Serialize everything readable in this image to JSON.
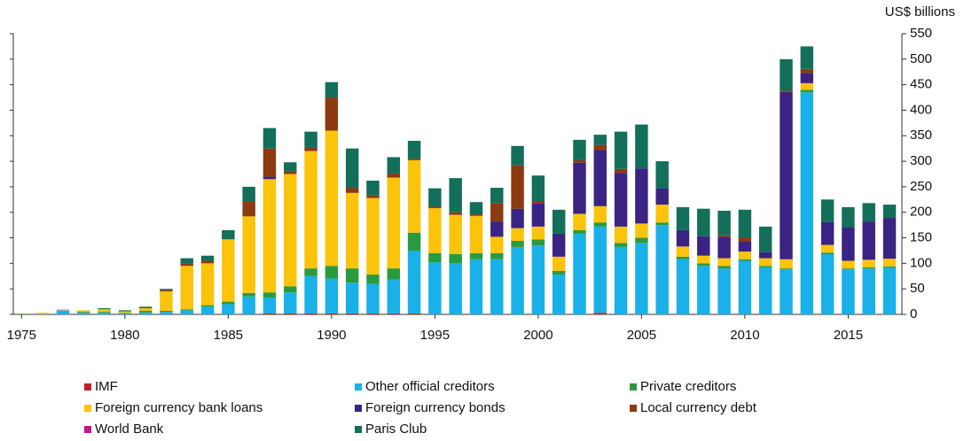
{
  "chart_data": {
    "type": "stacked_bar",
    "y_axis_label": "US$ billions",
    "x": [
      1975,
      1976,
      1977,
      1978,
      1979,
      1980,
      1981,
      1982,
      1983,
      1984,
      1985,
      1986,
      1987,
      1988,
      1989,
      1990,
      1991,
      1992,
      1993,
      1994,
      1995,
      1996,
      1997,
      1998,
      1999,
      2000,
      2001,
      2002,
      2003,
      2004,
      2005,
      2006,
      2007,
      2008,
      2009,
      2010,
      2011,
      2012,
      2013,
      2014,
      2015,
      2016,
      2017
    ],
    "xlim": [
      1974.6,
      2017.6
    ],
    "xticks": [
      1975,
      1980,
      1985,
      1990,
      1995,
      2000,
      2005,
      2010,
      2015
    ],
    "ylim": [
      0,
      550
    ],
    "yticks": [
      0,
      50,
      100,
      150,
      200,
      250,
      300,
      350,
      400,
      450,
      500,
      550
    ],
    "y_axis_side": "right",
    "series": [
      {
        "name": "IMF",
        "color": "#c0202a",
        "values": [
          0,
          0,
          0,
          0,
          0,
          0,
          0,
          0,
          0,
          0,
          0,
          0,
          2,
          2,
          2,
          2,
          2,
          2,
          2,
          2,
          0,
          0,
          0,
          0,
          0,
          0,
          0,
          0,
          3,
          0,
          0,
          0,
          0,
          0,
          0,
          0,
          0,
          0,
          0,
          0,
          0,
          0,
          0
        ]
      },
      {
        "name": "Other official creditors",
        "color": "#1ab0e8",
        "values": [
          1,
          1,
          8,
          3,
          3,
          3,
          4,
          5,
          8,
          15,
          20,
          35,
          31,
          41,
          73,
          68,
          60,
          58,
          66,
          123,
          102,
          100,
          108,
          108,
          132,
          135,
          78,
          158,
          169,
          132,
          140,
          175,
          108,
          95,
          90,
          105,
          92,
          88,
          435,
          118,
          88,
          90,
          92
        ]
      },
      {
        "name": "Private creditors",
        "color": "#2a9a3e",
        "values": [
          0,
          0,
          0,
          2,
          2,
          0,
          3,
          2,
          2,
          3,
          5,
          7,
          10,
          12,
          15,
          25,
          28,
          18,
          22,
          35,
          18,
          18,
          12,
          12,
          12,
          12,
          7,
          7,
          8,
          8,
          10,
          5,
          5,
          5,
          5,
          3,
          3,
          2,
          5,
          3,
          2,
          2,
          2
        ]
      },
      {
        "name": "Foreign currency bank loans",
        "color": "#fcc30b",
        "values": [
          1,
          2,
          2,
          3,
          5,
          3,
          5,
          38,
          85,
          82,
          122,
          150,
          222,
          220,
          230,
          265,
          148,
          150,
          178,
          142,
          88,
          77,
          73,
          32,
          25,
          25,
          28,
          32,
          32,
          32,
          28,
          35,
          20,
          15,
          15,
          15,
          15,
          18,
          13,
          15,
          15,
          15,
          15
        ]
      },
      {
        "name": "Foreign currency bonds",
        "color": "#3b2383",
        "values": [
          0,
          0,
          0,
          0,
          0,
          0,
          0,
          0,
          0,
          0,
          0,
          0,
          5,
          0,
          0,
          0,
          0,
          0,
          0,
          0,
          0,
          0,
          0,
          30,
          38,
          45,
          45,
          100,
          110,
          105,
          108,
          32,
          32,
          38,
          42,
          20,
          12,
          328,
          20,
          45,
          65,
          75,
          80
        ]
      },
      {
        "name": "Local currency debt",
        "color": "#8b3a12",
        "values": [
          0,
          0,
          0,
          0,
          0,
          0,
          0,
          3,
          5,
          5,
          0,
          30,
          55,
          5,
          8,
          65,
          10,
          5,
          8,
          3,
          3,
          5,
          3,
          36,
          85,
          5,
          0,
          5,
          10,
          8,
          0,
          0,
          0,
          0,
          3,
          8,
          0,
          2,
          8,
          0,
          0,
          0,
          0
        ]
      },
      {
        "name": "World Bank",
        "color": "#c8148c",
        "values": [
          0,
          0,
          0,
          0,
          0,
          0,
          0,
          0,
          0,
          0,
          0,
          0,
          0,
          0,
          0,
          0,
          0,
          0,
          0,
          0,
          0,
          0,
          0,
          0,
          0,
          0,
          0,
          0,
          0,
          0,
          0,
          0,
          0,
          0,
          0,
          0,
          0,
          0,
          0,
          0,
          0,
          0,
          0
        ]
      },
      {
        "name": "Paris Club",
        "color": "#136e5a",
        "values": [
          0,
          0,
          0,
          0,
          2,
          2,
          3,
          2,
          10,
          10,
          18,
          28,
          40,
          18,
          30,
          30,
          77,
          29,
          32,
          35,
          36,
          67,
          24,
          30,
          38,
          50,
          47,
          40,
          20,
          73,
          86,
          53,
          45,
          54,
          48,
          54,
          50,
          62,
          44,
          44,
          40,
          36,
          26
        ]
      }
    ]
  }
}
